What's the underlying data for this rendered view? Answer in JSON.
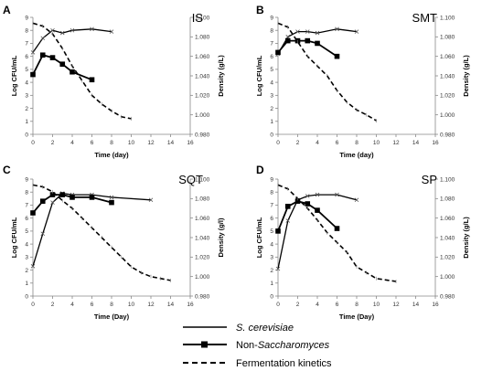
{
  "chart_data": [
    {
      "type": "line",
      "panel": "A",
      "title": "IS",
      "xlabel": "Time (day)",
      "ylabel": "Log CFU/mL",
      "y2label": "Density (g/L)",
      "xlim": [
        0,
        16
      ],
      "ylim": [
        0,
        9
      ],
      "y2lim": [
        0.98,
        1.1
      ],
      "xticks": [
        "0",
        "2",
        "4",
        "6",
        "8",
        "10",
        "12",
        "14",
        "16"
      ],
      "yticks": [
        "0",
        "1",
        "2",
        "3",
        "4",
        "5",
        "6",
        "7",
        "8",
        "9"
      ],
      "y2ticks": [
        "0.980",
        "1.000",
        "1.020",
        "1.040",
        "1.060",
        "1.080",
        "1.100"
      ],
      "series": [
        {
          "name": "S. cerevisiae",
          "axis": "left",
          "style": "solid-x",
          "x": [
            0,
            1,
            2,
            3,
            4,
            6,
            8
          ],
          "y": [
            6.3,
            7.4,
            8.0,
            7.8,
            8.0,
            8.1,
            7.9
          ]
        },
        {
          "name": "Non-Saccharomyces",
          "axis": "left",
          "style": "square",
          "x": [
            0,
            1,
            2,
            3,
            4,
            6
          ],
          "y": [
            4.6,
            6.1,
            5.9,
            5.4,
            4.8,
            4.2
          ]
        },
        {
          "name": "Fermentation kinetics",
          "axis": "right",
          "style": "dashed",
          "x": [
            0,
            1,
            2,
            3,
            4,
            5,
            6,
            7,
            8,
            9,
            10
          ],
          "y": [
            1.094,
            1.091,
            1.083,
            1.068,
            1.05,
            1.035,
            1.02,
            1.011,
            1.004,
            0.998,
            0.996
          ]
        }
      ]
    },
    {
      "type": "line",
      "panel": "B",
      "title": "SMT",
      "xlabel": "Time (day)",
      "ylabel": "Log CFU/mL",
      "y2label": "Density (g/L)",
      "xlim": [
        0,
        16
      ],
      "ylim": [
        0,
        9
      ],
      "y2lim": [
        0.98,
        1.1
      ],
      "xticks": [
        "0",
        "2",
        "4",
        "6",
        "8",
        "10",
        "12",
        "14",
        "16"
      ],
      "yticks": [
        "0",
        "1",
        "2",
        "3",
        "4",
        "5",
        "6",
        "7",
        "8",
        "9"
      ],
      "y2ticks": [
        "0.980",
        "1.000",
        "1.020",
        "1.040",
        "1.060",
        "1.080",
        "1.100"
      ],
      "series": [
        {
          "name": "S. cerevisiae",
          "axis": "left",
          "style": "solid-x",
          "x": [
            0,
            1,
            2,
            3,
            4,
            6,
            8
          ],
          "y": [
            6.2,
            7.5,
            7.9,
            7.9,
            7.8,
            8.1,
            7.9
          ]
        },
        {
          "name": "Non-Saccharomyces",
          "axis": "left",
          "style": "square",
          "x": [
            0,
            1,
            2,
            3,
            4,
            6
          ],
          "y": [
            6.3,
            7.2,
            7.2,
            7.2,
            7.0,
            6.0
          ]
        },
        {
          "name": "Fermentation kinetics",
          "axis": "right",
          "style": "dashed",
          "x": [
            0,
            1,
            2,
            3,
            4,
            5,
            6,
            7,
            8,
            9,
            10
          ],
          "y": [
            1.094,
            1.09,
            1.075,
            1.06,
            1.05,
            1.04,
            1.025,
            1.013,
            1.005,
            1.0,
            0.994
          ]
        }
      ]
    },
    {
      "type": "line",
      "panel": "C",
      "title": "SQT",
      "xlabel": "Time (Day)",
      "ylabel": "Log CFU/mL",
      "y2label": "Density (g/l)",
      "xlim": [
        0,
        16
      ],
      "ylim": [
        0,
        9
      ],
      "y2lim": [
        0.98,
        1.1
      ],
      "xticks": [
        "0",
        "2",
        "4",
        "6",
        "8",
        "10",
        "12",
        "14",
        "16"
      ],
      "yticks": [
        "0",
        "1",
        "2",
        "3",
        "4",
        "5",
        "6",
        "7",
        "8",
        "9"
      ],
      "y2ticks": [
        "0.980",
        "1.000",
        "1.020",
        "1.040",
        "1.060",
        "1.080",
        "1.100"
      ],
      "series": [
        {
          "name": "S. cerevisiae",
          "axis": "left",
          "style": "solid-x",
          "x": [
            0,
            1,
            2,
            3,
            4,
            6,
            8,
            12
          ],
          "y": [
            2.3,
            4.8,
            7.2,
            7.9,
            7.8,
            7.8,
            7.6,
            7.4
          ]
        },
        {
          "name": "Non-Saccharomyces",
          "axis": "left",
          "style": "square",
          "x": [
            0,
            1,
            2,
            3,
            4,
            6,
            8
          ],
          "y": [
            6.4,
            7.3,
            7.8,
            7.8,
            7.6,
            7.6,
            7.2
          ]
        },
        {
          "name": "Fermentation kinetics",
          "axis": "right",
          "style": "dashed",
          "x": [
            0,
            1,
            2,
            3,
            4,
            5,
            6,
            7,
            8,
            9,
            10,
            11,
            12,
            13,
            14
          ],
          "y": [
            1.094,
            1.092,
            1.087,
            1.078,
            1.07,
            1.06,
            1.05,
            1.04,
            1.03,
            1.02,
            1.01,
            1.004,
            1.0,
            0.998,
            0.996
          ]
        }
      ]
    },
    {
      "type": "line",
      "panel": "D",
      "title": "SP",
      "xlabel": "Time (Day)",
      "ylabel": "Log CFU/mL",
      "y2label": "Density (g/L)",
      "xlim": [
        0,
        16
      ],
      "ylim": [
        0,
        9
      ],
      "y2lim": [
        0.98,
        1.1
      ],
      "xticks": [
        "0",
        "2",
        "4",
        "6",
        "8",
        "10",
        "12",
        "14",
        "16"
      ],
      "yticks": [
        "0",
        "1",
        "2",
        "3",
        "4",
        "5",
        "6",
        "7",
        "8",
        "9"
      ],
      "y2ticks": [
        "0.980",
        "1.000",
        "1.020",
        "1.040",
        "1.060",
        "1.080",
        "1.100"
      ],
      "series": [
        {
          "name": "S. cerevisiae",
          "axis": "left",
          "style": "solid-x",
          "x": [
            0,
            1,
            2,
            3,
            4,
            6,
            8
          ],
          "y": [
            2.1,
            5.8,
            7.4,
            7.7,
            7.8,
            7.8,
            7.4
          ]
        },
        {
          "name": "Non-Saccharomyces",
          "axis": "left",
          "style": "square",
          "x": [
            0,
            1,
            2,
            3,
            4,
            6
          ],
          "y": [
            5.0,
            6.9,
            7.3,
            7.1,
            6.6,
            5.2
          ]
        },
        {
          "name": "Fermentation kinetics",
          "axis": "right",
          "style": "dashed",
          "x": [
            0,
            1,
            2,
            3,
            4,
            5,
            6,
            7,
            8,
            9,
            10,
            12
          ],
          "y": [
            1.094,
            1.09,
            1.08,
            1.07,
            1.058,
            1.045,
            1.035,
            1.025,
            1.01,
            1.004,
            0.998,
            0.995
          ]
        }
      ]
    }
  ],
  "legend": {
    "items": [
      {
        "style": "solid-x",
        "parts": [
          {
            "text": "S. cerevisiae",
            "italic": true
          }
        ]
      },
      {
        "style": "square",
        "parts": [
          {
            "text": "Non-",
            "italic": false
          },
          {
            "text": "Saccharomyces",
            "italic": true
          }
        ]
      },
      {
        "style": "dashed",
        "parts": [
          {
            "text": "Fermentation kinetics",
            "italic": false
          }
        ]
      }
    ]
  }
}
